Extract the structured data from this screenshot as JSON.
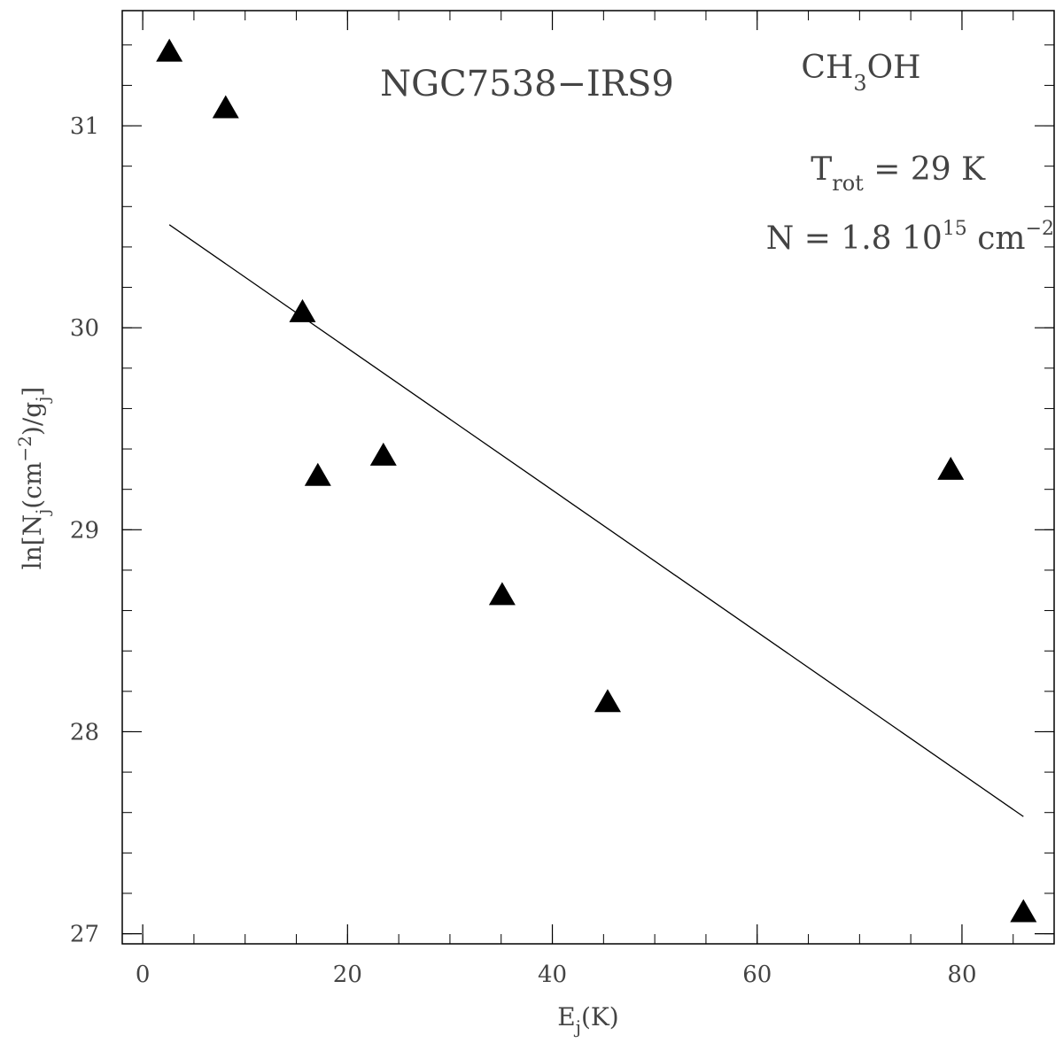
{
  "chart_data": {
    "type": "scatter",
    "title": "NGC7538−IRS9",
    "molecule": {
      "base": "CH",
      "sub": "3",
      "tail": "OH"
    },
    "trot": {
      "symbol": "T",
      "sub": "rot",
      "text": " = 29 K"
    },
    "ncol": {
      "prefix": "N = 1.8 10",
      "exp": "15",
      "unit": " cm",
      "unit_exp": "−2"
    },
    "xlabel": {
      "base": "E",
      "sub": "j",
      "tail": "(K)"
    },
    "ylabel": {
      "p1": "ln[N",
      "s1": "j",
      "p2": "(cm",
      "e1": "−2",
      "p3": ")/g",
      "s2": "j",
      "p4": "]"
    },
    "xlim": [
      -2,
      89
    ],
    "ylim": [
      26.95,
      31.57
    ],
    "x_ticks": [
      0,
      20,
      40,
      60,
      80
    ],
    "x_tick_labels": [
      "0",
      "20",
      "40",
      "60",
      "80"
    ],
    "x_minor_step": 5,
    "y_ticks": [
      27,
      28,
      29,
      30,
      31
    ],
    "y_tick_labels": [
      "27",
      "28",
      "29",
      "30",
      "31"
    ],
    "y_minor_step": 0.2,
    "grid": false,
    "points": [
      {
        "x": 2.6,
        "y": 31.37
      },
      {
        "x": 8.1,
        "y": 31.09
      },
      {
        "x": 15.6,
        "y": 30.08
      },
      {
        "x": 17.1,
        "y": 29.27
      },
      {
        "x": 23.5,
        "y": 29.37
      },
      {
        "x": 35.1,
        "y": 28.68
      },
      {
        "x": 45.4,
        "y": 28.15
      },
      {
        "x": 78.9,
        "y": 29.3
      },
      {
        "x": 86.0,
        "y": 27.11
      }
    ],
    "fit_line": {
      "x": [
        2.6,
        86.0
      ],
      "y": [
        30.51,
        27.58
      ]
    }
  }
}
